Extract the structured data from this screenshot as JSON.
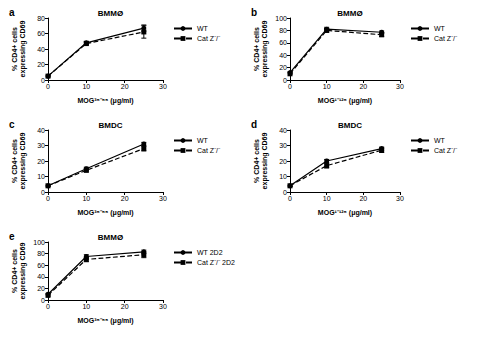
{
  "chart_data": [
    {
      "type": "line",
      "panel_label": "a",
      "title": "BMMØ",
      "x_label": "MOG³⁵⁻⁵⁵ (μg/ml)",
      "y_label": "% CD4+ cells\nexpressing CD69",
      "xlim": [
        0,
        30
      ],
      "xticks": [
        0,
        10,
        20,
        30
      ],
      "ylim": [
        0,
        80
      ],
      "yticks": [
        0,
        20,
        40,
        60,
        80
      ],
      "grid": false,
      "legend": "right",
      "x": [
        0,
        10,
        25
      ],
      "series": [
        {
          "name": "WT",
          "color": "#000000",
          "marker": "circle",
          "line_style": "solid",
          "values": [
            5,
            48,
            67
          ],
          "errors": [
            1,
            2,
            4
          ]
        },
        {
          "name": "Cat Z⁻/⁻",
          "color": "#000000",
          "marker": "rect",
          "line_style": "dashed",
          "values": [
            5,
            47,
            62
          ],
          "errors": [
            1,
            2,
            8
          ]
        }
      ]
    },
    {
      "type": "line",
      "panel_label": "b",
      "title": "BMMØ",
      "x_label": "MOG¹⁻¹²⁵ (μg/ml)",
      "y_label": "% CD4+ cells\nexpressing CD69",
      "xlim": [
        0,
        30
      ],
      "xticks": [
        0,
        10,
        20,
        30
      ],
      "ylim": [
        0,
        100
      ],
      "yticks": [
        0,
        20,
        40,
        60,
        80,
        100
      ],
      "grid": false,
      "legend": "right",
      "x": [
        0,
        10,
        25
      ],
      "series": [
        {
          "name": "WT",
          "color": "#000000",
          "marker": "circle",
          "line_style": "solid",
          "values": [
            12,
            82,
            77
          ],
          "errors": [
            1,
            3,
            2
          ]
        },
        {
          "name": "Cat Z⁻/⁻",
          "color": "#000000",
          "marker": "rect",
          "line_style": "dashed",
          "values": [
            10,
            80,
            73
          ],
          "errors": [
            1,
            3,
            3
          ]
        }
      ]
    },
    {
      "type": "line",
      "panel_label": "c",
      "title": "BMDC",
      "x_label": "MOG³⁵⁻⁵⁵ (μg/ml)",
      "y_label": "% CD4+ cells\nexpressing CD69",
      "xlim": [
        0,
        30
      ],
      "xticks": [
        0,
        10,
        20,
        30
      ],
      "ylim": [
        0,
        40
      ],
      "yticks": [
        0,
        10,
        20,
        30,
        40
      ],
      "grid": false,
      "legend": "right",
      "x": [
        0,
        10,
        25
      ],
      "series": [
        {
          "name": "WT",
          "color": "#000000",
          "marker": "circle",
          "line_style": "solid",
          "values": [
            4,
            15,
            31
          ],
          "errors": [
            0.5,
            1,
            1
          ]
        },
        {
          "name": "Cat Z⁻/⁻",
          "color": "#000000",
          "marker": "rect",
          "line_style": "dashed",
          "values": [
            4,
            14,
            28
          ],
          "errors": [
            0.5,
            1,
            1.5
          ]
        }
      ]
    },
    {
      "type": "line",
      "panel_label": "d",
      "title": "BMDC",
      "x_label": "MOG¹⁻¹²⁵ (μg/ml)",
      "y_label": "% CD4+ cells\nexpressing CD69",
      "xlim": [
        0,
        30
      ],
      "xticks": [
        0,
        10,
        20,
        30
      ],
      "ylim": [
        0,
        40
      ],
      "yticks": [
        0,
        10,
        20,
        30,
        40
      ],
      "grid": false,
      "legend": "right",
      "x": [
        0,
        10,
        25
      ],
      "series": [
        {
          "name": "WT",
          "color": "#000000",
          "marker": "circle",
          "line_style": "solid",
          "values": [
            4,
            20,
            28
          ],
          "errors": [
            0.5,
            1,
            1
          ]
        },
        {
          "name": "Cat Z⁻/⁻",
          "color": "#000000",
          "marker": "rect",
          "line_style": "dashed",
          "values": [
            4,
            17,
            27
          ],
          "errors": [
            0.5,
            1.5,
            1.5
          ]
        }
      ]
    },
    {
      "type": "line",
      "panel_label": "e",
      "title": "BMMØ",
      "x_label": "MOG³⁵⁻⁵⁵ (μg/ml)",
      "y_label": "% CD4+ cells\nexpressing CD69",
      "xlim": [
        0,
        30
      ],
      "xticks": [
        0,
        10,
        20,
        30
      ],
      "ylim": [
        0,
        100
      ],
      "yticks": [
        0,
        20,
        40,
        60,
        80,
        100
      ],
      "grid": false,
      "legend": "right",
      "x": [
        0,
        10,
        25
      ],
      "series": [
        {
          "name": "WT 2D2",
          "color": "#000000",
          "marker": "circle",
          "line_style": "solid",
          "values": [
            10,
            75,
            83
          ],
          "errors": [
            2,
            3,
            3
          ]
        },
        {
          "name": "Cat Z⁻/⁻ 2D2",
          "color": "#000000",
          "marker": "rect",
          "line_style": "dashed",
          "values": [
            8,
            70,
            78
          ],
          "errors": [
            2,
            4,
            5
          ]
        }
      ]
    }
  ]
}
